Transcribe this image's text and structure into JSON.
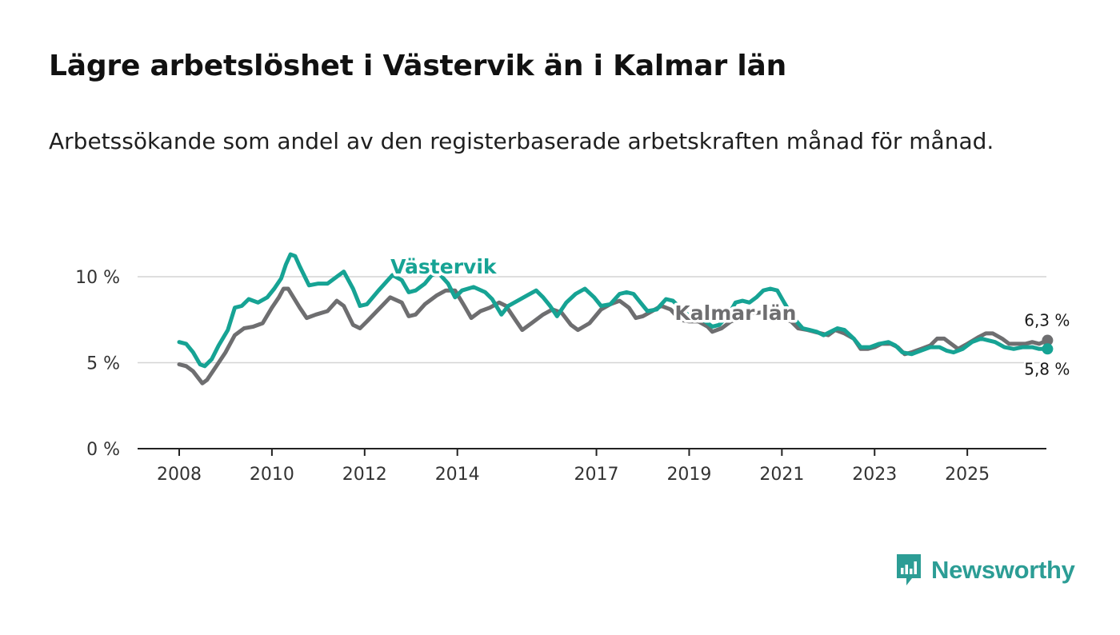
{
  "title": "Lägre arbetslöshet i Västervik än i Kalmar län",
  "subtitle": "Arbetssökande som andel av den registerbaserade arbetskraften månad för månad.",
  "brand": {
    "name": "Newsworthy",
    "icon": "newsworthy-logo-icon",
    "color": "#2c9d95"
  },
  "chart_data": {
    "type": "line",
    "title": "Lägre arbetslöshet i Västervik än i Kalmar län",
    "xlabel": "",
    "ylabel": "",
    "xlim": [
      2007.9,
      2027.5
    ],
    "ylim": [
      0,
      12
    ],
    "y_ticks": [
      0,
      5,
      10
    ],
    "y_tick_labels": [
      "0 %",
      "5 %",
      "10 %"
    ],
    "x_ticks": [
      2008,
      2010,
      2012,
      2014,
      2017,
      2019,
      2021,
      2023,
      2025
    ],
    "x_tick_labels": [
      "2008",
      "2010",
      "2012",
      "2014",
      "2017",
      "2019",
      "2021",
      "2023",
      "2025"
    ],
    "grid": true,
    "series": [
      {
        "name": "Kalmar län",
        "color": "#6e6e70",
        "end_label": "6,3 %",
        "points": [
          [
            2008.0,
            4.9
          ],
          [
            2008.15,
            4.8
          ],
          [
            2008.3,
            4.5
          ],
          [
            2008.5,
            3.8
          ],
          [
            2008.6,
            4.0
          ],
          [
            2008.75,
            4.6
          ],
          [
            2009.0,
            5.6
          ],
          [
            2009.2,
            6.6
          ],
          [
            2009.4,
            7.0
          ],
          [
            2009.6,
            7.1
          ],
          [
            2009.8,
            7.3
          ],
          [
            2010.0,
            8.2
          ],
          [
            2010.15,
            8.8
          ],
          [
            2010.25,
            9.3
          ],
          [
            2010.35,
            9.3
          ],
          [
            2010.6,
            8.2
          ],
          [
            2010.75,
            7.6
          ],
          [
            2010.95,
            7.8
          ],
          [
            2011.2,
            8.0
          ],
          [
            2011.4,
            8.6
          ],
          [
            2011.55,
            8.3
          ],
          [
            2011.75,
            7.2
          ],
          [
            2011.9,
            7.0
          ],
          [
            2012.05,
            7.4
          ],
          [
            2012.3,
            8.1
          ],
          [
            2012.55,
            8.8
          ],
          [
            2012.8,
            8.5
          ],
          [
            2012.95,
            7.7
          ],
          [
            2013.1,
            7.8
          ],
          [
            2013.3,
            8.4
          ],
          [
            2013.55,
            8.9
          ],
          [
            2013.75,
            9.2
          ],
          [
            2013.95,
            9.2
          ],
          [
            2014.15,
            8.3
          ],
          [
            2014.3,
            7.6
          ],
          [
            2014.5,
            8.0
          ],
          [
            2014.7,
            8.2
          ],
          [
            2014.9,
            8.5
          ],
          [
            2015.05,
            8.3
          ],
          [
            2015.25,
            7.5
          ],
          [
            2015.4,
            6.9
          ],
          [
            2015.6,
            7.3
          ],
          [
            2015.85,
            7.8
          ],
          [
            2016.05,
            8.1
          ],
          [
            2016.25,
            7.9
          ],
          [
            2016.45,
            7.2
          ],
          [
            2016.6,
            6.9
          ],
          [
            2016.85,
            7.3
          ],
          [
            2017.1,
            8.1
          ],
          [
            2017.3,
            8.4
          ],
          [
            2017.5,
            8.6
          ],
          [
            2017.7,
            8.2
          ],
          [
            2017.85,
            7.6
          ],
          [
            2018.0,
            7.7
          ],
          [
            2018.2,
            8.0
          ],
          [
            2018.4,
            8.3
          ],
          [
            2018.6,
            8.1
          ],
          [
            2018.8,
            7.5
          ],
          [
            2019.0,
            7.4
          ],
          [
            2019.2,
            7.4
          ],
          [
            2019.4,
            7.1
          ],
          [
            2019.5,
            6.8
          ],
          [
            2019.7,
            7.0
          ],
          [
            2019.9,
            7.4
          ],
          [
            2020.1,
            7.6
          ],
          [
            2020.3,
            7.9
          ],
          [
            2020.5,
            7.9
          ],
          [
            2020.7,
            8.0
          ],
          [
            2020.85,
            7.8
          ],
          [
            2021.0,
            7.6
          ],
          [
            2021.2,
            7.4
          ],
          [
            2021.35,
            7.0
          ],
          [
            2021.55,
            6.9
          ],
          [
            2021.7,
            6.8
          ],
          [
            2021.85,
            6.7
          ],
          [
            2022.0,
            6.6
          ],
          [
            2022.15,
            6.9
          ],
          [
            2022.35,
            6.7
          ],
          [
            2022.55,
            6.4
          ],
          [
            2022.7,
            5.8
          ],
          [
            2022.85,
            5.8
          ],
          [
            2023.0,
            5.9
          ],
          [
            2023.15,
            6.1
          ],
          [
            2023.35,
            6.1
          ],
          [
            2023.5,
            5.9
          ],
          [
            2023.65,
            5.5
          ],
          [
            2023.8,
            5.6
          ],
          [
            2024.0,
            5.8
          ],
          [
            2024.2,
            6.0
          ],
          [
            2024.35,
            6.4
          ],
          [
            2024.5,
            6.4
          ],
          [
            2024.65,
            6.1
          ],
          [
            2024.8,
            5.8
          ],
          [
            2025.0,
            6.1
          ],
          [
            2025.25,
            6.5
          ],
          [
            2025.4,
            6.7
          ],
          [
            2025.55,
            6.7
          ],
          [
            2025.75,
            6.4
          ],
          [
            2025.9,
            6.1
          ],
          [
            2026.05,
            6.1
          ],
          [
            2026.25,
            6.1
          ],
          [
            2026.4,
            6.2
          ],
          [
            2026.55,
            6.1
          ],
          [
            2026.73,
            6.3
          ]
        ]
      },
      {
        "name": "Västervik",
        "color": "#16a394",
        "end_label": "5,8 %",
        "points": [
          [
            2008.0,
            6.2
          ],
          [
            2008.15,
            6.1
          ],
          [
            2008.3,
            5.6
          ],
          [
            2008.45,
            4.9
          ],
          [
            2008.55,
            4.8
          ],
          [
            2008.7,
            5.2
          ],
          [
            2008.85,
            6.0
          ],
          [
            2009.05,
            6.9
          ],
          [
            2009.2,
            8.2
          ],
          [
            2009.35,
            8.3
          ],
          [
            2009.5,
            8.7
          ],
          [
            2009.7,
            8.5
          ],
          [
            2009.9,
            8.8
          ],
          [
            2010.05,
            9.3
          ],
          [
            2010.2,
            9.9
          ],
          [
            2010.3,
            10.7
          ],
          [
            2010.4,
            11.3
          ],
          [
            2010.5,
            11.2
          ],
          [
            2010.6,
            10.6
          ],
          [
            2010.8,
            9.5
          ],
          [
            2011.0,
            9.6
          ],
          [
            2011.2,
            9.6
          ],
          [
            2011.4,
            10.0
          ],
          [
            2011.55,
            10.3
          ],
          [
            2011.75,
            9.3
          ],
          [
            2011.9,
            8.3
          ],
          [
            2012.05,
            8.4
          ],
          [
            2012.3,
            9.2
          ],
          [
            2012.5,
            9.8
          ],
          [
            2012.6,
            10.1
          ],
          [
            2012.8,
            9.8
          ],
          [
            2012.95,
            9.1
          ],
          [
            2013.1,
            9.2
          ],
          [
            2013.3,
            9.6
          ],
          [
            2013.45,
            10.1
          ],
          [
            2013.6,
            10.2
          ],
          [
            2013.8,
            9.6
          ],
          [
            2013.95,
            8.8
          ],
          [
            2014.1,
            9.2
          ],
          [
            2014.35,
            9.4
          ],
          [
            2014.6,
            9.1
          ],
          [
            2014.75,
            8.7
          ],
          [
            2014.95,
            7.8
          ],
          [
            2015.1,
            8.3
          ],
          [
            2015.3,
            8.6
          ],
          [
            2015.5,
            8.9
          ],
          [
            2015.7,
            9.2
          ],
          [
            2015.85,
            8.8
          ],
          [
            2016.0,
            8.3
          ],
          [
            2016.15,
            7.7
          ],
          [
            2016.35,
            8.5
          ],
          [
            2016.55,
            9.0
          ],
          [
            2016.75,
            9.3
          ],
          [
            2016.95,
            8.8
          ],
          [
            2017.1,
            8.3
          ],
          [
            2017.3,
            8.4
          ],
          [
            2017.5,
            9.0
          ],
          [
            2017.65,
            9.1
          ],
          [
            2017.8,
            9.0
          ],
          [
            2017.95,
            8.5
          ],
          [
            2018.1,
            8.0
          ],
          [
            2018.3,
            8.1
          ],
          [
            2018.5,
            8.7
          ],
          [
            2018.65,
            8.6
          ],
          [
            2018.8,
            8.2
          ],
          [
            2019.0,
            7.7
          ],
          [
            2019.15,
            7.6
          ],
          [
            2019.35,
            7.4
          ],
          [
            2019.5,
            7.1
          ],
          [
            2019.65,
            7.2
          ],
          [
            2019.85,
            7.8
          ],
          [
            2020.0,
            8.5
          ],
          [
            2020.15,
            8.6
          ],
          [
            2020.3,
            8.5
          ],
          [
            2020.45,
            8.8
          ],
          [
            2020.6,
            9.2
          ],
          [
            2020.75,
            9.3
          ],
          [
            2020.9,
            9.2
          ],
          [
            2021.05,
            8.5
          ],
          [
            2021.25,
            7.6
          ],
          [
            2021.45,
            7.0
          ],
          [
            2021.6,
            6.9
          ],
          [
            2021.75,
            6.8
          ],
          [
            2021.9,
            6.6
          ],
          [
            2022.05,
            6.8
          ],
          [
            2022.2,
            7.0
          ],
          [
            2022.35,
            6.9
          ],
          [
            2022.55,
            6.4
          ],
          [
            2022.7,
            5.9
          ],
          [
            2022.9,
            5.9
          ],
          [
            2023.1,
            6.1
          ],
          [
            2023.3,
            6.2
          ],
          [
            2023.45,
            6.0
          ],
          [
            2023.6,
            5.6
          ],
          [
            2023.8,
            5.5
          ],
          [
            2024.0,
            5.7
          ],
          [
            2024.2,
            5.9
          ],
          [
            2024.4,
            5.9
          ],
          [
            2024.55,
            5.7
          ],
          [
            2024.7,
            5.6
          ],
          [
            2024.9,
            5.8
          ],
          [
            2025.1,
            6.2
          ],
          [
            2025.3,
            6.4
          ],
          [
            2025.45,
            6.3
          ],
          [
            2025.6,
            6.2
          ],
          [
            2025.8,
            5.9
          ],
          [
            2026.0,
            5.8
          ],
          [
            2026.2,
            5.9
          ],
          [
            2026.4,
            5.9
          ],
          [
            2026.55,
            5.8
          ],
          [
            2026.73,
            5.8
          ]
        ]
      }
    ],
    "series_labels": [
      {
        "name": "Västervik",
        "near_x": 2013.7,
        "near_y": 10.6
      },
      {
        "name": "Kalmar län",
        "near_x": 2020.0,
        "near_y": 7.9
      }
    ]
  }
}
